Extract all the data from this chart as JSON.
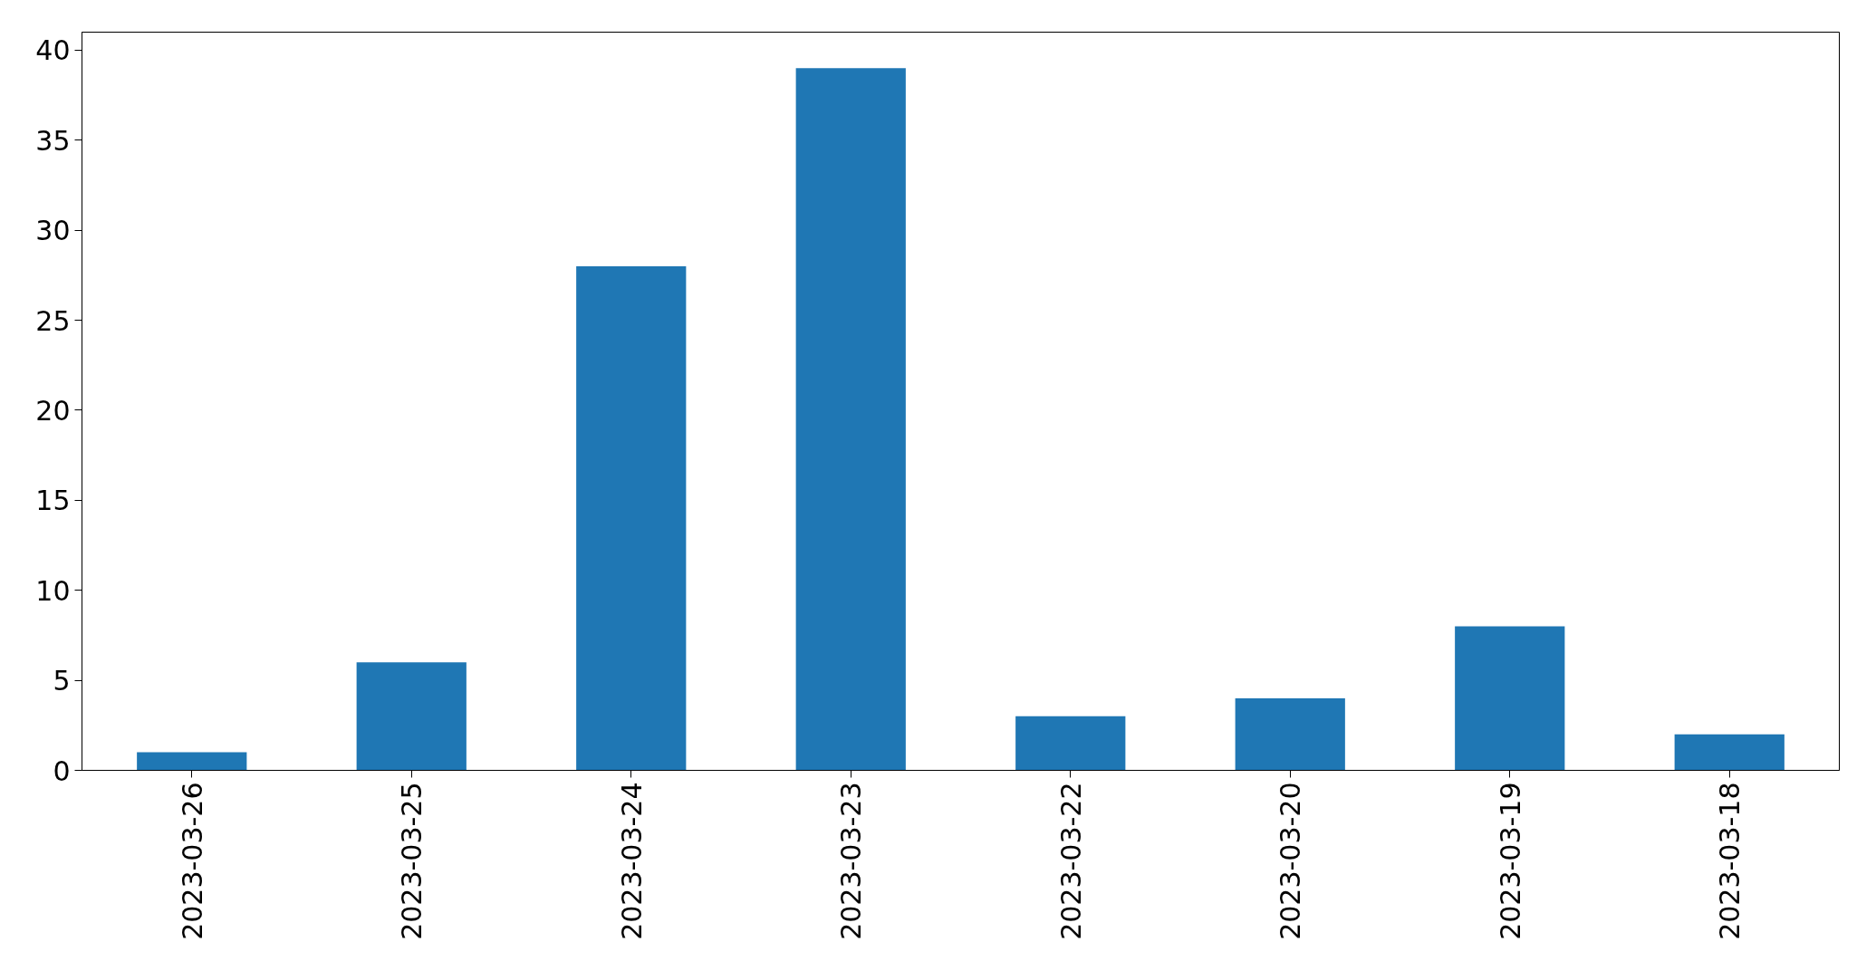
{
  "chart_data": {
    "type": "bar",
    "categories": [
      "2023-03-26",
      "2023-03-25",
      "2023-03-24",
      "2023-03-23",
      "2023-03-22",
      "2023-03-20",
      "2023-03-19",
      "2023-03-18"
    ],
    "values": [
      1,
      6,
      28,
      39,
      3,
      4,
      8,
      2
    ],
    "color": "#1f77b4",
    "ylim": [
      0,
      41
    ],
    "yticks": [
      0,
      5,
      10,
      15,
      20,
      25,
      30,
      35,
      40
    ],
    "grid": false
  }
}
